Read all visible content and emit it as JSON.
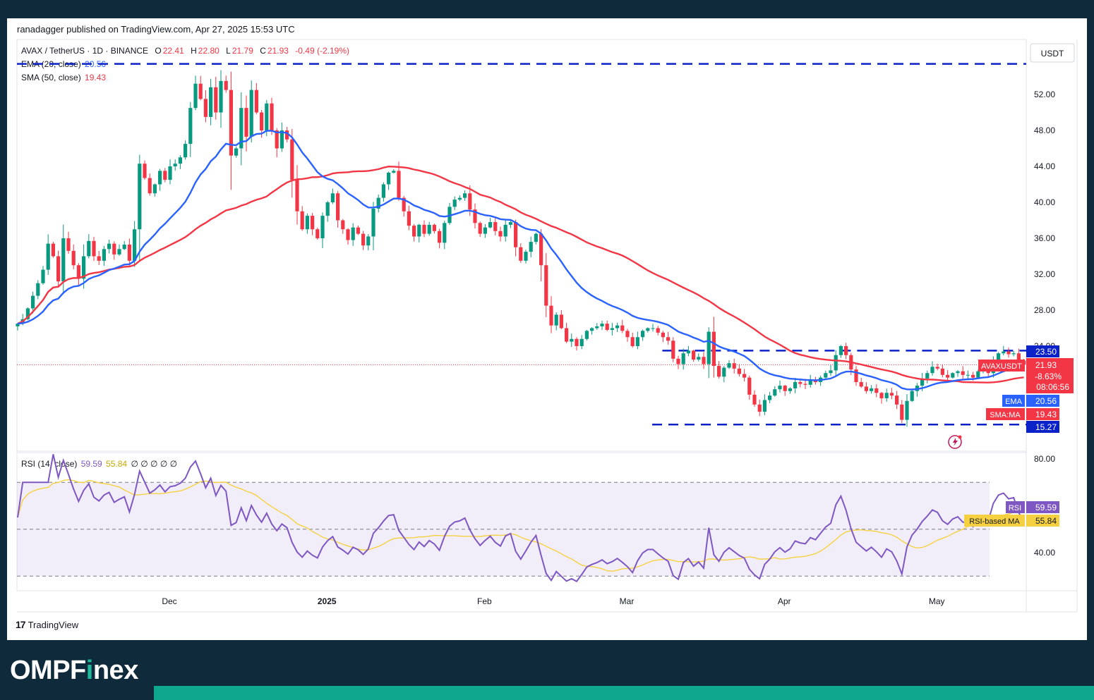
{
  "header": {
    "published": "ranadagger published on TradingView.com, Apr 27, 2025 15:53 UTC",
    "symbol": "AVAX / TetherUS · 1D · BINANCE",
    "open_label": "O",
    "open": "22.41",
    "high_label": "H",
    "high": "22.80",
    "low_label": "L",
    "low": "21.79",
    "close_label": "C",
    "close": "21.93",
    "change": "-0.49 (-2.19%)",
    "ema_label": "EMA (20, close)",
    "ema_value": "20.56",
    "sma_label": "SMA (50, close)",
    "sma_value": "19.43",
    "currency": "USDT"
  },
  "rsi_legend": {
    "label": "RSI (14, close)",
    "rsi": "59.59",
    "ma": "55.84",
    "extra": "∅ ∅ ∅ ∅ ∅"
  },
  "price_badges": {
    "resistance": "23.50",
    "ticker": "AVAXUSDT",
    "last": "21.93",
    "change_pct": "-8.63%",
    "countdown": "08:06:56",
    "ema_tag": "EMA",
    "ema": "20.56",
    "sma_tag": "SMA:MA",
    "sma": "19.43",
    "support": "15.27",
    "rsi_tag": "RSI",
    "rsi": "59.59",
    "rsi_ma_tag": "RSI-based MA",
    "rsi_ma": "55.84"
  },
  "branding": {
    "tv": "TradingView",
    "site_pre": "OMPF",
    "site_accent": "i",
    "site_post": "nex"
  },
  "colors": {
    "up": "#089981",
    "down": "#f23645",
    "ema": "#2962ff",
    "sma": "#f23645",
    "rsi": "#7e57c2",
    "rsi_ma": "#f5d142",
    "level": "#0b22c8"
  },
  "chart_data": {
    "type": "candlestick",
    "title": "AVAX / TetherUS · 1D · BINANCE",
    "price_axis_ticks": [
      52,
      48,
      44,
      40,
      36,
      32,
      28,
      24
    ],
    "price_axis_labels": [
      "52.00",
      "48.00",
      "44.00",
      "40.00",
      "36.00",
      "32.00",
      "28.00",
      "24.00"
    ],
    "rsi_axis_ticks": [
      80,
      40
    ],
    "rsi_axis_labels": [
      "80.00",
      "40.00"
    ],
    "x_labels": [
      "Dec",
      "2025",
      "Feb",
      "Mar",
      "Apr",
      "May"
    ],
    "x_label_dates": [
      "2024-12-01",
      "2025-01-01",
      "2025-02-01",
      "2025-03-01",
      "2025-04-01",
      "2025-05-01"
    ],
    "start_date": "2024-11-01",
    "end_date": "2025-04-27",
    "levels": [
      {
        "name": "Dec top",
        "value": 55.4,
        "from": "2024-11-01",
        "to": "2025-05-10"
      },
      {
        "name": "resistance",
        "value": 23.5,
        "from": "2025-03-08",
        "to": "2025-05-10"
      },
      {
        "name": "support",
        "value": 15.27,
        "from": "2025-03-06",
        "to": "2025-05-10"
      }
    ],
    "close": [
      26.5,
      27,
      28.2,
      29.6,
      31,
      32.5,
      35.4,
      34,
      31.2,
      36,
      34.6,
      33,
      31.5,
      34,
      35.7,
      34,
      33.5,
      34.8,
      35.4,
      34.2,
      34.8,
      35.3,
      33.5,
      37,
      44.3,
      42.7,
      41,
      42,
      43.5,
      42.5,
      44,
      44.3,
      45,
      46.5,
      50.5,
      53.2,
      51.5,
      49.5,
      52.8,
      50,
      53.5,
      52.5,
      45.2,
      46,
      50.5,
      47.3,
      52.5,
      50,
      48,
      51,
      48,
      46,
      48,
      47,
      42.5,
      39,
      37,
      38.5,
      37,
      36,
      38.5,
      40,
      41,
      38,
      37,
      35.8,
      37.2,
      36.5,
      35.2,
      36.2,
      39.3,
      40.5,
      42,
      43.3,
      43.5,
      40.5,
      39,
      37.4,
      36.2,
      37.5,
      36.5,
      37.5,
      36.8,
      35.5,
      37.7,
      39.5,
      40.3,
      40.5,
      41,
      39.2,
      37.7,
      36.5,
      37.2,
      37.8,
      36.8,
      36.2,
      37.5,
      37.8,
      35,
      33.5,
      34.5,
      35.6,
      36.5,
      33,
      28.5,
      26.3,
      27.5,
      26,
      24.5,
      24.8,
      24,
      24.8,
      25.7,
      26,
      26.2,
      26.5,
      25.8,
      26,
      26.3,
      25.7,
      25,
      24,
      25,
      25.7,
      26,
      26,
      25.5,
      25,
      24.6,
      22.6,
      22,
      23.2,
      23.5,
      22.5,
      22.8,
      22,
      25.6,
      21.8,
      20.6,
      21.6,
      22.1,
      21.5,
      20.9,
      20.5,
      18.6,
      17.5,
      16.7,
      18,
      18.5,
      19.2,
      19.6,
      19,
      19.3,
      20,
      19.8,
      19.7,
      20.2,
      20,
      20.5,
      21,
      21.3,
      23,
      24,
      23,
      21.4,
      20,
      19.5,
      19,
      19.3,
      18.8,
      18.2,
      18.8,
      18.5,
      17.5,
      15.8,
      17.9,
      19,
      19.6,
      20.4,
      21,
      21.7,
      21.5,
      20.8,
      20.5,
      21,
      21.2,
      20.8,
      20.8,
      20.5,
      21.2,
      21.3,
      21,
      22.4,
      23.2,
      23.4,
      23.1,
      23.2,
      22.4,
      21.93
    ],
    "ema20_close": 20.56,
    "sma50_close": 19.43,
    "rsi_last": 59.59,
    "rsi_ma_last": 55.84
  }
}
